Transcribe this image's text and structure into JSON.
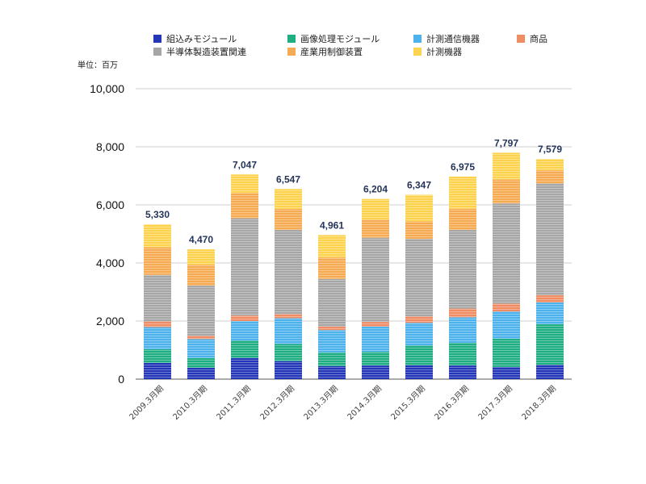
{
  "chart_data": {
    "type": "bar",
    "stacked": true,
    "title": "",
    "unit_label": "単位：百万",
    "xlabel": "",
    "ylabel": "",
    "ylim": [
      0,
      10000
    ],
    "yticks": [
      0,
      2000,
      4000,
      6000,
      8000,
      10000
    ],
    "ytick_labels": [
      "0",
      "2,000",
      "4,000",
      "6,000",
      "8,000",
      "10,000"
    ],
    "grid": true,
    "legend_position": "top",
    "categories": [
      "2009.3月期",
      "2010.3月期",
      "2011.3月期",
      "2012.3月期",
      "2013.3月期",
      "2014.3月期",
      "2015.3月期",
      "2016.3月期",
      "2017.3月期",
      "2018.3月期"
    ],
    "totals": [
      5330,
      4470,
      7047,
      6547,
      4961,
      6204,
      6347,
      6975,
      7797,
      7579
    ],
    "total_labels": [
      "5,330",
      "4,470",
      "7,047",
      "6,547",
      "4,961",
      "6,204",
      "6,347",
      "6,975",
      "7,797",
      "7,579"
    ],
    "series": [
      {
        "name": "組込みモジュール",
        "color": "#2436b8",
        "values": [
          560,
          390,
          730,
          620,
          450,
          470,
          480,
          470,
          420,
          490
        ]
      },
      {
        "name": "画像処理モジュール",
        "color": "#1fae82",
        "values": [
          470,
          340,
          600,
          590,
          470,
          470,
          680,
          780,
          970,
          1400
        ]
      },
      {
        "name": "計測通信機器",
        "color": "#4db2ec",
        "values": [
          760,
          650,
          670,
          890,
          770,
          870,
          780,
          880,
          940,
          750
        ]
      },
      {
        "name": "商品",
        "color": "#ef8c63",
        "values": [
          200,
          110,
          190,
          140,
          120,
          160,
          220,
          300,
          270,
          250
        ]
      },
      {
        "name": "半導体製造装置関連",
        "color": "#a6a6a6",
        "values": [
          1600,
          1730,
          3350,
          2900,
          1640,
          2900,
          2670,
          2710,
          3450,
          3850
        ]
      },
      {
        "name": "産業用制御装置",
        "color": "#f6aa52",
        "values": [
          950,
          720,
          870,
          720,
          740,
          620,
          600,
          730,
          830,
          450
        ]
      },
      {
        "name": "計測機器",
        "color": "#fdd24f",
        "values": [
          790,
          530,
          637,
          687,
          771,
          714,
          917,
          1105,
          917,
          389
        ]
      }
    ]
  }
}
